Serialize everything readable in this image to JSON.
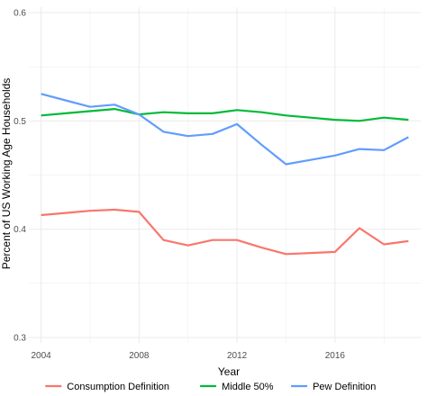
{
  "chart_data": {
    "type": "line",
    "xlabel": "Year",
    "ylabel": "Percent of US Working Age Households",
    "xlim": [
      2003.5,
      2019.5
    ],
    "ylim": [
      0.295,
      0.605
    ],
    "x_ticks": [
      2004,
      2008,
      2012,
      2016
    ],
    "y_ticks": [
      0.3,
      0.4,
      0.5,
      0.6
    ],
    "grid": true,
    "legend_position": "bottom",
    "series": [
      {
        "name": "Consumption Definition",
        "color": "#F8766D",
        "x": [
          2004,
          2005,
          2006,
          2007,
          2008,
          2009,
          2010,
          2011,
          2012,
          2013,
          2014,
          2015,
          2016,
          2017,
          2018,
          2019
        ],
        "values": [
          0.413,
          0.415,
          0.417,
          0.418,
          0.416,
          0.39,
          0.385,
          0.39,
          0.39,
          0.383,
          0.377,
          0.378,
          0.379,
          0.401,
          0.386,
          0.389
        ]
      },
      {
        "name": "Middle 50%",
        "color": "#00BA38",
        "x": [
          2004,
          2005,
          2006,
          2007,
          2008,
          2009,
          2010,
          2011,
          2012,
          2013,
          2014,
          2015,
          2016,
          2017,
          2018,
          2019
        ],
        "values": [
          0.505,
          0.507,
          0.509,
          0.511,
          0.506,
          0.508,
          0.507,
          0.507,
          0.51,
          0.508,
          0.505,
          0.503,
          0.501,
          0.5,
          0.503,
          0.501
        ]
      },
      {
        "name": "Pew Definition",
        "color": "#619CFF",
        "x": [
          2004,
          2005,
          2006,
          2007,
          2008,
          2009,
          2010,
          2011,
          2012,
          2013,
          2014,
          2015,
          2016,
          2017,
          2018,
          2019
        ],
        "values": [
          0.525,
          0.519,
          0.513,
          0.515,
          0.506,
          0.49,
          0.486,
          0.488,
          0.497,
          0.478,
          0.46,
          0.464,
          0.468,
          0.474,
          0.473,
          0.485
        ]
      }
    ]
  }
}
